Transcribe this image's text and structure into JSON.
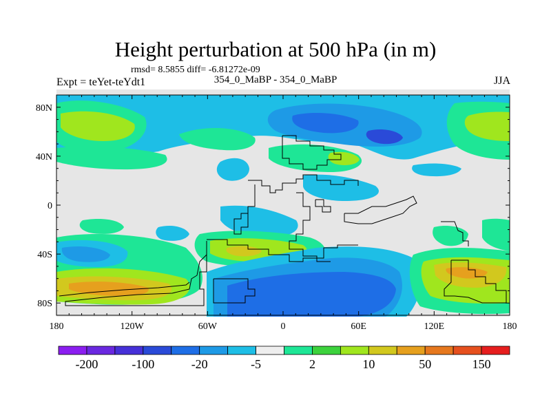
{
  "title": "Height perturbation at 500 hPa (in m)",
  "stats_line": "rmsd= 8.5855  diff= -6.81272e-09",
  "experiment": "Expt = teYet-teYdt1",
  "cases": "354_0_MaBP - 354_0_MaBP",
  "season": "JJA",
  "lat_ticks": [
    {
      "value": 80,
      "label": "80N"
    },
    {
      "value": 40,
      "label": "40N"
    },
    {
      "value": 0,
      "label": "0"
    },
    {
      "value": -40,
      "label": "40S"
    },
    {
      "value": -80,
      "label": "80S"
    }
  ],
  "lon_ticks": [
    {
      "value": -180,
      "label": "180"
    },
    {
      "value": -120,
      "label": "120W"
    },
    {
      "value": -60,
      "label": "60W"
    },
    {
      "value": 0,
      "label": "0"
    },
    {
      "value": 60,
      "label": "60E"
    },
    {
      "value": 120,
      "label": "120E"
    },
    {
      "value": 180,
      "label": "180"
    }
  ],
  "colorbar": {
    "colors": [
      "#8b1ef0",
      "#6a28e0",
      "#4630d8",
      "#2a4ad8",
      "#1e6ee6",
      "#1e9ae6",
      "#1ebee6",
      "#eeeeee",
      "#1ee696",
      "#3cd23c",
      "#a0e61e",
      "#d2c81e",
      "#e6a01e",
      "#e6781e",
      "#e6501e",
      "#e61e1e"
    ],
    "labels": [
      {
        "boundary": 1,
        "text": "-200"
      },
      {
        "boundary": 3,
        "text": "-100"
      },
      {
        "boundary": 5,
        "text": "-20"
      },
      {
        "boundary": 7,
        "text": "-5"
      },
      {
        "boundary": 9,
        "text": "2"
      },
      {
        "boundary": 11,
        "text": "10"
      },
      {
        "boundary": 13,
        "text": "50"
      },
      {
        "boundary": 15,
        "text": "150"
      }
    ]
  },
  "field_colors": {
    "background": "#e6e6e6",
    "neutral": "#eeeeee",
    "cyan": "#1ebee6",
    "light_blue": "#1e9ae6",
    "blue": "#1e6ee6",
    "dark_blue": "#2a4ad8",
    "mint": "#1ee696",
    "green": "#3cd23c",
    "yellow_green": "#a0e61e",
    "olive": "#d2c81e",
    "orange": "#e6a01e"
  }
}
